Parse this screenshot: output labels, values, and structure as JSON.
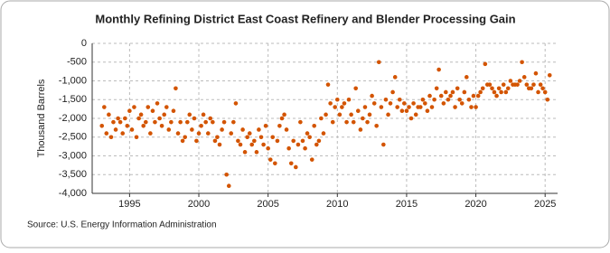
{
  "chart_data": {
    "type": "scatter",
    "title": "Monthly Refining District East Coast Refinery and Blender Processing Gain",
    "y_label": "Thousand Barrels",
    "source": "Source: U.S. Energy Information Administration",
    "color": "#d35400",
    "grid": true,
    "xlim": [
      1992.3,
      2025.9
    ],
    "xticks": [
      1995,
      2000,
      2005,
      2010,
      2015,
      2020,
      2025
    ],
    "ylim": [
      -4000,
      0
    ],
    "yticks": [
      {
        "value": -4000,
        "label": "-4,000"
      },
      {
        "value": -3500,
        "label": "-3,500"
      },
      {
        "value": -3000,
        "label": "-3,000"
      },
      {
        "value": -2500,
        "label": "-2,500"
      },
      {
        "value": -2000,
        "label": "-2,000"
      },
      {
        "value": -1500,
        "label": "-1,500"
      },
      {
        "value": -1000,
        "label": "-1,000"
      },
      -500,
      0
    ],
    "x": [
      1993,
      1993.17,
      1993.33,
      1993.5,
      1993.67,
      1993.83,
      1994,
      1994.17,
      1994.33,
      1994.5,
      1994.67,
      1994.83,
      1995,
      1995.17,
      1995.33,
      1995.5,
      1995.67,
      1995.83,
      1996,
      1996.17,
      1996.33,
      1996.5,
      1996.67,
      1996.83,
      1997,
      1997.17,
      1997.33,
      1997.5,
      1997.67,
      1997.83,
      1998,
      1998.17,
      1998.33,
      1998.5,
      1998.67,
      1998.83,
      1999,
      1999.17,
      1999.33,
      1999.5,
      1999.67,
      1999.83,
      2000,
      2000.17,
      2000.33,
      2000.5,
      2000.67,
      2000.83,
      2001,
      2001.17,
      2001.33,
      2001.5,
      2001.67,
      2001.83,
      2002,
      2002.17,
      2002.33,
      2002.5,
      2002.67,
      2002.83,
      2003,
      2003.17,
      2003.33,
      2003.5,
      2003.67,
      2003.83,
      2004,
      2004.17,
      2004.33,
      2004.5,
      2004.67,
      2004.83,
      2005,
      2005.17,
      2005.33,
      2005.5,
      2005.67,
      2005.83,
      2006,
      2006.17,
      2006.33,
      2006.5,
      2006.67,
      2006.83,
      2007,
      2007.17,
      2007.33,
      2007.5,
      2007.67,
      2007.83,
      2008,
      2008.17,
      2008.33,
      2008.5,
      2008.67,
      2008.83,
      2009,
      2009.17,
      2009.33,
      2009.5,
      2009.67,
      2009.83,
      2010,
      2010.17,
      2010.33,
      2010.5,
      2010.67,
      2010.83,
      2011,
      2011.17,
      2011.33,
      2011.5,
      2011.67,
      2011.83,
      2012,
      2012.17,
      2012.33,
      2012.5,
      2012.67,
      2012.83,
      2013,
      2013.17,
      2013.33,
      2013.5,
      2013.67,
      2013.83,
      2014,
      2014.17,
      2014.33,
      2014.5,
      2014.67,
      2014.83,
      2015,
      2015.17,
      2015.33,
      2015.5,
      2015.67,
      2015.83,
      2016,
      2016.17,
      2016.33,
      2016.5,
      2016.67,
      2016.83,
      2017,
      2017.17,
      2017.33,
      2017.5,
      2017.67,
      2017.83,
      2018,
      2018.17,
      2018.33,
      2018.5,
      2018.67,
      2018.83,
      2019,
      2019.17,
      2019.33,
      2019.5,
      2019.67,
      2019.83,
      2020,
      2020.17,
      2020.33,
      2020.5,
      2020.67,
      2020.83,
      2021,
      2021.17,
      2021.33,
      2021.5,
      2021.67,
      2021.83,
      2022,
      2022.17,
      2022.33,
      2022.5,
      2022.67,
      2022.83,
      2023,
      2023.17,
      2023.33,
      2023.5,
      2023.67,
      2023.83,
      2024,
      2024.17,
      2024.33,
      2024.5,
      2024.67,
      2024.83,
      2025,
      2025.17,
      2025.33
    ],
    "values": [
      -2200,
      -1700,
      -2400,
      -1900,
      -2500,
      -2100,
      -2300,
      -2000,
      -2100,
      -2400,
      -2000,
      -2200,
      -1800,
      -2300,
      -1700,
      -2500,
      -2000,
      -1900,
      -2200,
      -2100,
      -1700,
      -2400,
      -1800,
      -2100,
      -1600,
      -2000,
      -2200,
      -1900,
      -1700,
      -2300,
      -2100,
      -1800,
      -1200,
      -2400,
      -2100,
      -2600,
      -2500,
      -2100,
      -1900,
      -2300,
      -2000,
      -2600,
      -2400,
      -2200,
      -1900,
      -2100,
      -2400,
      -2000,
      -2100,
      -2600,
      -2500,
      -2700,
      -2300,
      -2100,
      -3500,
      -3800,
      -2400,
      -2100,
      -1600,
      -2600,
      -2700,
      -2300,
      -2900,
      -2500,
      -2400,
      -2700,
      -2600,
      -2900,
      -2300,
      -2500,
      -2700,
      -2200,
      -2800,
      -3100,
      -2500,
      -3200,
      -2600,
      -2200,
      -2000,
      -1900,
      -2300,
      -2800,
      -3200,
      -2600,
      -3300,
      -2700,
      -2100,
      -2600,
      -2800,
      -2400,
      -2500,
      -3100,
      -2200,
      -2700,
      -2600,
      -2000,
      -2400,
      -1900,
      -1100,
      -1600,
      -2100,
      -1700,
      -1500,
      -1900,
      -1700,
      -1600,
      -2100,
      -1500,
      -1900,
      -2100,
      -1200,
      -1800,
      -2300,
      -2000,
      -1700,
      -2100,
      -1900,
      -1400,
      -1600,
      -2200,
      -500,
      -1700,
      -2700,
      -1500,
      -1900,
      -1600,
      -1300,
      -900,
      -1700,
      -1500,
      -1800,
      -1600,
      -1800,
      -1700,
      -2000,
      -1600,
      -1900,
      -1700,
      -1700,
      -1500,
      -1600,
      -1800,
      -1400,
      -1700,
      -1500,
      -1200,
      -700,
      -1400,
      -1600,
      -1300,
      -1500,
      -1400,
      -1300,
      -1700,
      -1200,
      -1500,
      -1600,
      -1300,
      -900,
      -1500,
      -1700,
      -1400,
      -1700,
      -1400,
      -1300,
      -1200,
      -550,
      -1100,
      -1100,
      -1200,
      -1300,
      -1400,
      -1200,
      -1300,
      -1100,
      -1300,
      -1200,
      -1000,
      -1100,
      -1100,
      -1100,
      -1000,
      -500,
      -900,
      -1100,
      -1200,
      -1200,
      -1100,
      -800,
      -1300,
      -1100,
      -1200,
      -1300,
      -1500,
      -850
    ]
  }
}
